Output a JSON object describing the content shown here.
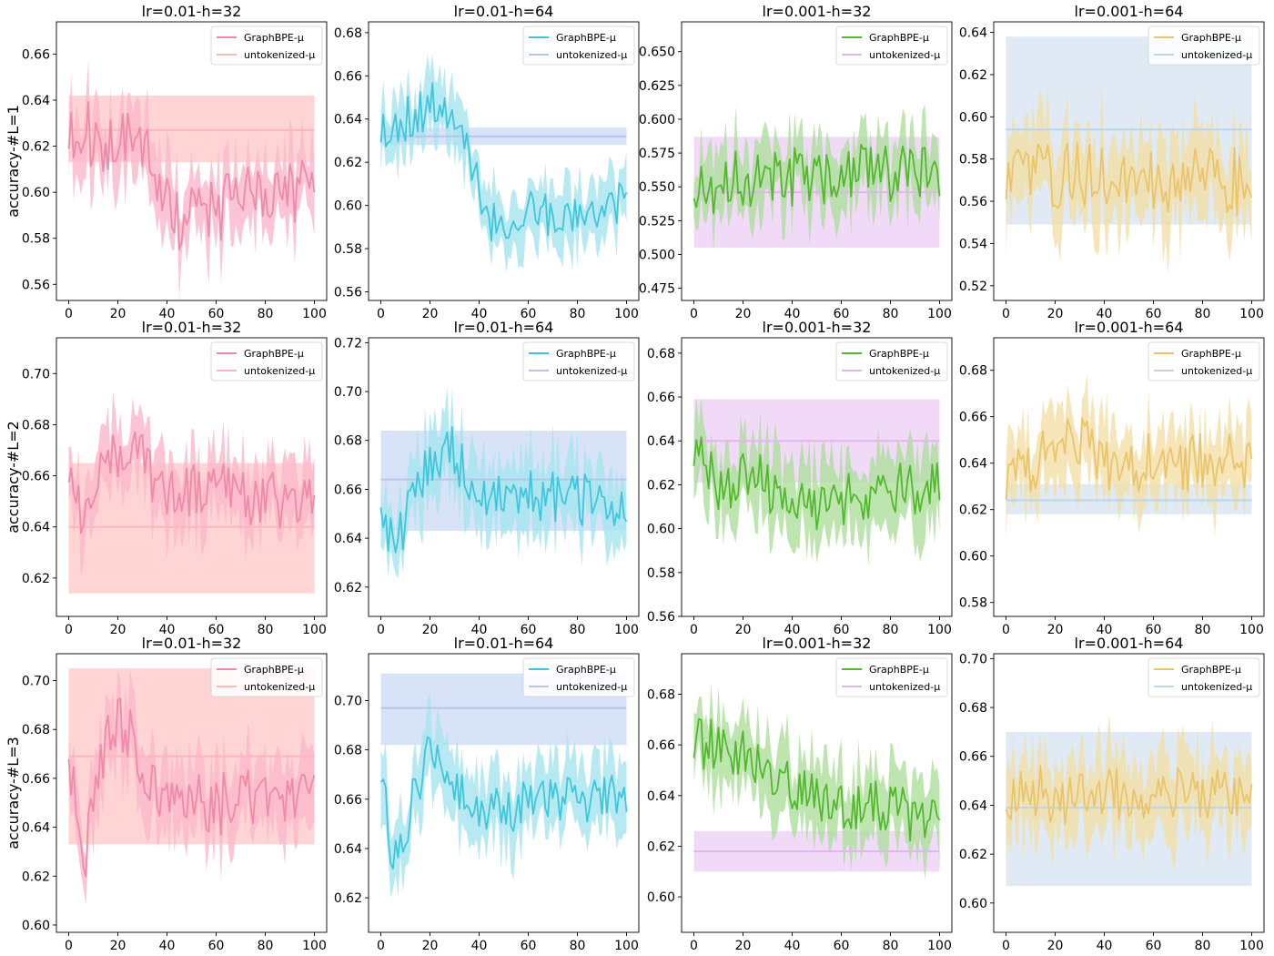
{
  "figure": {
    "type": "grid",
    "rows": 3,
    "cols": 4
  },
  "legend_labels": [
    "GraphBPE-μ",
    "untokenized-μ"
  ],
  "colors": {
    "c0": {
      "line": "#f08aa6",
      "fill": "#fbb7cb",
      "base": "#ffb6b6",
      "band": "#ffd2d2"
    },
    "c1": {
      "line": "#3fc6dc",
      "fill": "#a5e4ef",
      "base": "#b4c7ea",
      "band": "#d6e1f7"
    },
    "c2": {
      "line": "#52b82e",
      "fill": "#aedf9c",
      "base": "#e4b4ee",
      "band": "#efd8f7"
    },
    "c3": {
      "line": "#ebc46a",
      "fill": "#f3dea6",
      "base": "#bcd5e8",
      "band": "#dde9f3"
    }
  },
  "chart_data": [
    {
      "type": "line",
      "row": 0,
      "col": 0,
      "title": "lr=0.01-h=32",
      "ylabel": "accuracy-#L=1",
      "xlim": [
        -5,
        105
      ],
      "ylim": [
        0.553,
        0.674
      ],
      "yticks": [
        0.56,
        0.58,
        0.6,
        0.62,
        0.64,
        0.66
      ],
      "yfmt": 2,
      "xticks": [
        0,
        20,
        40,
        60,
        80,
        100
      ],
      "legend_loc": "top-right",
      "segments": [
        [
          0,
          0.626
        ],
        [
          30,
          0.622
        ],
        [
          38,
          0.598
        ],
        [
          45,
          0.589
        ],
        [
          100,
          0.604
        ]
      ],
      "amp": 0.014,
      "band_lo": 0.005,
      "band_hi": 0.022,
      "base_mean": 0.627,
      "base_lo": 0.613,
      "base_hi": 0.642,
      "seed": 11
    },
    {
      "type": "line",
      "row": 0,
      "col": 1,
      "title": "lr=0.01-h=64",
      "ylabel": "",
      "xlim": [
        -5,
        105
      ],
      "ylim": [
        0.556,
        0.685
      ],
      "yticks": [
        0.56,
        0.58,
        0.6,
        0.62,
        0.64,
        0.66,
        0.68
      ],
      "yfmt": 2,
      "xticks": [
        0,
        20,
        40,
        60,
        80,
        100
      ],
      "legend_loc": "top-right",
      "segments": [
        [
          0,
          0.635
        ],
        [
          25,
          0.648
        ],
        [
          36,
          0.625
        ],
        [
          42,
          0.592
        ],
        [
          100,
          0.601
        ]
      ],
      "amp": 0.011,
      "band_lo": 0.006,
      "band_hi": 0.02,
      "base_mean": 0.632,
      "base_lo": 0.628,
      "base_hi": 0.636,
      "seed": 23
    },
    {
      "type": "line",
      "row": 0,
      "col": 2,
      "title": "lr=0.001-h=32",
      "ylabel": "",
      "xlim": [
        -5,
        105
      ],
      "ylim": [
        0.466,
        0.672
      ],
      "yticks": [
        0.475,
        0.5,
        0.525,
        0.55,
        0.575,
        0.6,
        0.625,
        0.65
      ],
      "yfmt": 3,
      "xticks": [
        0,
        20,
        40,
        60,
        80,
        100
      ],
      "legend_loc": "top-right",
      "segments": [
        [
          0,
          0.555
        ],
        [
          100,
          0.562
        ]
      ],
      "amp": 0.022,
      "band_lo": 0.01,
      "band_hi": 0.035,
      "base_mean": 0.546,
      "base_lo": 0.505,
      "base_hi": 0.587,
      "seed": 37
    },
    {
      "type": "line",
      "row": 0,
      "col": 3,
      "title": "lr=0.001-h=64",
      "ylabel": "",
      "xlim": [
        -5,
        105
      ],
      "ylim": [
        0.513,
        0.645
      ],
      "yticks": [
        0.52,
        0.54,
        0.56,
        0.58,
        0.6,
        0.62,
        0.64
      ],
      "yfmt": 2,
      "xticks": [
        0,
        20,
        40,
        60,
        80,
        100
      ],
      "legend_loc": "top-right",
      "segments": [
        [
          0,
          0.572
        ],
        [
          100,
          0.571
        ]
      ],
      "amp": 0.015,
      "band_lo": 0.008,
      "band_hi": 0.03,
      "base_mean": 0.594,
      "base_lo": 0.549,
      "base_hi": 0.638,
      "seed": 41
    },
    {
      "type": "line",
      "row": 1,
      "col": 0,
      "title": "lr=0.01-h=32",
      "ylabel": "accuracy-#L=2",
      "xlim": [
        -5,
        105
      ],
      "ylim": [
        0.605,
        0.714
      ],
      "yticks": [
        0.62,
        0.64,
        0.66,
        0.68,
        0.7
      ],
      "yfmt": 2,
      "xticks": [
        0,
        20,
        40,
        60,
        80,
        100
      ],
      "legend_loc": "top-right",
      "segments": [
        [
          0,
          0.662
        ],
        [
          5,
          0.645
        ],
        [
          12,
          0.665
        ],
        [
          30,
          0.668
        ],
        [
          38,
          0.655
        ],
        [
          100,
          0.651
        ]
      ],
      "amp": 0.011,
      "band_lo": 0.006,
      "band_hi": 0.018,
      "base_mean": 0.64,
      "base_lo": 0.614,
      "base_hi": 0.665,
      "seed": 53
    },
    {
      "type": "line",
      "row": 1,
      "col": 1,
      "title": "lr=0.01-h=64",
      "ylabel": "",
      "xlim": [
        -5,
        105
      ],
      "ylim": [
        0.608,
        0.722
      ],
      "yticks": [
        0.62,
        0.64,
        0.66,
        0.68,
        0.7,
        0.72
      ],
      "yfmt": 2,
      "xticks": [
        0,
        20,
        40,
        60,
        80,
        100
      ],
      "legend_loc": "top-right",
      "segments": [
        [
          0,
          0.658
        ],
        [
          6,
          0.628
        ],
        [
          12,
          0.665
        ],
        [
          30,
          0.675
        ],
        [
          38,
          0.658
        ],
        [
          100,
          0.656
        ]
      ],
      "amp": 0.011,
      "band_lo": 0.007,
      "band_hi": 0.02,
      "base_mean": 0.664,
      "base_lo": 0.643,
      "base_hi": 0.684,
      "seed": 67
    },
    {
      "type": "line",
      "row": 1,
      "col": 2,
      "title": "lr=0.001-h=32",
      "ylabel": "",
      "xlim": [
        -5,
        105
      ],
      "ylim": [
        0.56,
        0.687
      ],
      "yticks": [
        0.56,
        0.58,
        0.6,
        0.62,
        0.64,
        0.66,
        0.68
      ],
      "yfmt": 2,
      "xticks": [
        0,
        20,
        40,
        60,
        80,
        100
      ],
      "legend_loc": "top-right",
      "segments": [
        [
          0,
          0.636
        ],
        [
          10,
          0.615
        ],
        [
          25,
          0.625
        ],
        [
          40,
          0.61
        ],
        [
          100,
          0.62
        ]
      ],
      "amp": 0.012,
      "band_lo": 0.008,
      "band_hi": 0.025,
      "base_mean": 0.64,
      "base_lo": 0.621,
      "base_hi": 0.659,
      "seed": 71
    },
    {
      "type": "line",
      "row": 1,
      "col": 3,
      "title": "lr=0.001-h=64",
      "ylabel": "",
      "xlim": [
        -5,
        105
      ],
      "ylim": [
        0.574,
        0.694
      ],
      "yticks": [
        0.58,
        0.6,
        0.62,
        0.64,
        0.66,
        0.68
      ],
      "yfmt": 2,
      "xticks": [
        0,
        20,
        40,
        60,
        80,
        100
      ],
      "legend_loc": "top-right",
      "segments": [
        [
          0,
          0.632
        ],
        [
          10,
          0.642
        ],
        [
          25,
          0.652
        ],
        [
          40,
          0.64
        ],
        [
          100,
          0.64
        ]
      ],
      "amp": 0.012,
      "band_lo": 0.008,
      "band_hi": 0.022,
      "base_mean": 0.624,
      "base_lo": 0.618,
      "base_hi": 0.631,
      "seed": 83
    },
    {
      "type": "line",
      "row": 2,
      "col": 0,
      "title": "lr=0.01-h=32",
      "ylabel": "accuracy-#L=3",
      "xlim": [
        -5,
        105
      ],
      "ylim": [
        0.597,
        0.711
      ],
      "yticks": [
        0.6,
        0.62,
        0.64,
        0.66,
        0.68,
        0.7
      ],
      "yfmt": 2,
      "xticks": [
        0,
        20,
        40,
        60,
        80,
        100
      ],
      "legend_loc": "top-right",
      "segments": [
        [
          0,
          0.672
        ],
        [
          6,
          0.625
        ],
        [
          12,
          0.665
        ],
        [
          20,
          0.685
        ],
        [
          32,
          0.66
        ],
        [
          40,
          0.648
        ],
        [
          100,
          0.652
        ]
      ],
      "amp": 0.011,
      "band_lo": 0.007,
      "band_hi": 0.02,
      "base_mean": 0.669,
      "base_lo": 0.633,
      "base_hi": 0.705,
      "seed": 97
    },
    {
      "type": "line",
      "row": 2,
      "col": 1,
      "title": "lr=0.01-h=64",
      "ylabel": "",
      "xlim": [
        -5,
        105
      ],
      "ylim": [
        0.606,
        0.719
      ],
      "yticks": [
        0.62,
        0.64,
        0.66,
        0.68,
        0.7
      ],
      "yfmt": 2,
      "xticks": [
        0,
        20,
        40,
        60,
        80,
        100
      ],
      "legend_loc": "top-right",
      "segments": [
        [
          0,
          0.672
        ],
        [
          5,
          0.635
        ],
        [
          20,
          0.678
        ],
        [
          40,
          0.655
        ],
        [
          100,
          0.664
        ]
      ],
      "amp": 0.01,
      "band_lo": 0.007,
      "band_hi": 0.02,
      "base_mean": 0.697,
      "base_lo": 0.682,
      "base_hi": 0.711,
      "seed": 101
    },
    {
      "type": "line",
      "row": 2,
      "col": 2,
      "title": "lr=0.001-h=32",
      "ylabel": "",
      "xlim": [
        -5,
        105
      ],
      "ylim": [
        0.586,
        0.696
      ],
      "yticks": [
        0.6,
        0.62,
        0.64,
        0.66,
        0.68
      ],
      "yfmt": 2,
      "xticks": [
        0,
        20,
        40,
        60,
        80,
        100
      ],
      "legend_loc": "top-right",
      "segments": [
        [
          0,
          0.66
        ],
        [
          25,
          0.655
        ],
        [
          50,
          0.638
        ],
        [
          100,
          0.632
        ]
      ],
      "amp": 0.01,
      "band_lo": 0.007,
      "band_hi": 0.02,
      "base_mean": 0.618,
      "base_lo": 0.61,
      "base_hi": 0.626,
      "seed": 113
    },
    {
      "type": "line",
      "row": 2,
      "col": 3,
      "title": "lr=0.001-h=64",
      "ylabel": "",
      "xlim": [
        -5,
        105
      ],
      "ylim": [
        0.588,
        0.702
      ],
      "yticks": [
        0.6,
        0.62,
        0.64,
        0.66,
        0.68,
        0.7
      ],
      "yfmt": 2,
      "xticks": [
        0,
        20,
        40,
        60,
        80,
        100
      ],
      "legend_loc": "top-right",
      "segments": [
        [
          0,
          0.645
        ],
        [
          100,
          0.643
        ]
      ],
      "amp": 0.011,
      "band_lo": 0.007,
      "band_hi": 0.024,
      "base_mean": 0.639,
      "base_lo": 0.607,
      "base_hi": 0.67,
      "seed": 127
    }
  ]
}
